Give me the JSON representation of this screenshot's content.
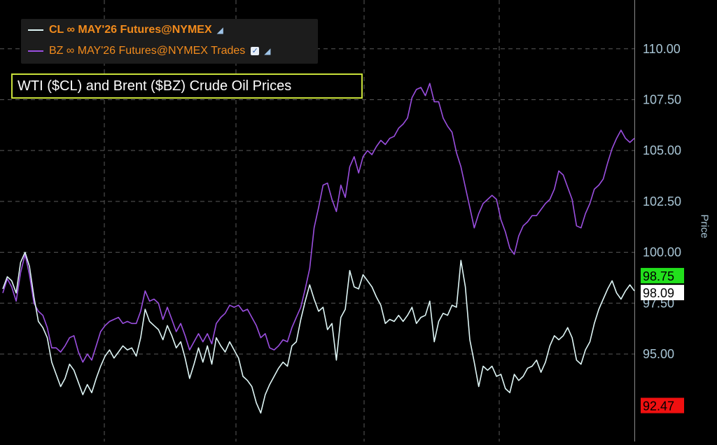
{
  "chart_data": {
    "type": "line",
    "title": "WTI ($CL) and Brent ($BZ) Crude Oil Prices",
    "ylabel": "Price",
    "ylim": [
      90.7,
      112.4
    ],
    "y_ticks": [
      "95.00",
      "97.50",
      "100.00",
      "102.50",
      "105.00",
      "107.50",
      "110.00"
    ],
    "grid": true,
    "legend_position": "top-left",
    "series": [
      {
        "name": "CL ∞ MAY'26 Futures@NYMEX",
        "color": "#dff6f6",
        "values": [
          98.2,
          98.8,
          98.6,
          98.0,
          99.5,
          100.0,
          99.3,
          97.8,
          96.6,
          96.3,
          95.8,
          94.6,
          94.0,
          93.4,
          93.8,
          94.5,
          94.2,
          93.6,
          93.0,
          93.5,
          93.1,
          93.8,
          94.4,
          94.9,
          95.2,
          94.8,
          95.1,
          95.4,
          95.2,
          95.3,
          94.9,
          95.8,
          97.2,
          96.6,
          96.4,
          96.2,
          95.7,
          96.4,
          95.9,
          95.3,
          95.6,
          94.8,
          93.8,
          94.5,
          95.3,
          94.6,
          95.4,
          94.5,
          95.8,
          95.4,
          95.1,
          95.6,
          95.2,
          94.8,
          93.9,
          93.7,
          93.4,
          92.6,
          92.1,
          93.0,
          93.5,
          93.9,
          94.3,
          94.6,
          94.4,
          95.4,
          95.6,
          96.7,
          97.6,
          98.4,
          97.7,
          97.1,
          97.3,
          96.2,
          96.5,
          94.7,
          96.8,
          97.2,
          99.1,
          98.3,
          98.2,
          98.9,
          98.6,
          98.3,
          97.8,
          97.4,
          96.5,
          96.7,
          96.6,
          96.9,
          96.6,
          96.9,
          97.3,
          96.5,
          96.8,
          96.9,
          97.6,
          95.6,
          96.6,
          97.0,
          96.9,
          97.4,
          97.3,
          99.6,
          98.3,
          95.7,
          94.6,
          93.4,
          94.4,
          94.2,
          94.4,
          93.9,
          94.0,
          93.3,
          93.1,
          94.0,
          93.7,
          93.9,
          94.3,
          94.4,
          94.7,
          94.1,
          94.6,
          95.4,
          95.9,
          95.7,
          95.9,
          96.3,
          95.8,
          94.7,
          94.5,
          95.2,
          95.6,
          96.5,
          97.2,
          97.7,
          98.2,
          98.6,
          98.0,
          97.7,
          98.1,
          98.4,
          98.1
        ]
      },
      {
        "name": "BZ ∞ MAY'26 Futures@NYMEX Trades",
        "color": "#9b4fe0",
        "values": [
          98.0,
          98.7,
          98.3,
          97.6,
          99.0,
          99.9,
          98.9,
          97.5,
          97.1,
          96.9,
          96.3,
          95.3,
          95.3,
          95.1,
          95.4,
          95.8,
          95.9,
          95.1,
          94.6,
          95.0,
          94.7,
          95.4,
          96.1,
          96.4,
          96.6,
          96.7,
          96.8,
          96.5,
          96.6,
          96.5,
          96.5,
          97.1,
          98.1,
          97.6,
          97.7,
          97.5,
          96.7,
          97.3,
          96.7,
          96.1,
          96.5,
          95.9,
          95.2,
          95.6,
          96.0,
          95.6,
          96.0,
          95.5,
          96.5,
          96.8,
          97.0,
          97.4,
          97.3,
          97.4,
          97.1,
          97.2,
          96.8,
          96.4,
          95.8,
          96.0,
          95.3,
          95.2,
          95.4,
          95.7,
          95.6,
          96.3,
          96.8,
          97.3,
          98.2,
          99.2,
          101.2,
          102.2,
          103.3,
          103.4,
          102.6,
          102.0,
          103.3,
          102.7,
          104.2,
          104.7,
          103.9,
          104.7,
          105.0,
          104.8,
          105.2,
          105.5,
          105.3,
          105.6,
          105.7,
          106.1,
          106.3,
          106.6,
          107.6,
          108.0,
          108.1,
          107.7,
          108.3,
          107.4,
          107.4,
          106.6,
          106.2,
          105.9,
          104.9,
          104.2,
          103.2,
          102.2,
          101.2,
          101.9,
          102.4,
          102.6,
          102.8,
          102.6,
          101.6,
          101.0,
          100.2,
          99.9,
          100.8,
          101.3,
          101.5,
          101.8,
          101.8,
          102.1,
          102.4,
          102.6,
          103.1,
          104.0,
          103.8,
          103.2,
          102.6,
          101.3,
          101.2,
          101.9,
          102.4,
          103.1,
          103.3,
          103.6,
          104.4,
          105.1,
          105.6,
          106.0,
          105.6,
          105.4,
          105.6
        ]
      }
    ],
    "price_labels": [
      {
        "text": "98.75",
        "value": 98.75,
        "bg": "#22e01c",
        "fg": "#000000"
      },
      {
        "text": "98.09",
        "value": 98.09,
        "bg": "#ffffff",
        "fg": "#000000"
      },
      {
        "text": "92.47",
        "value": 92.47,
        "bg": "#f01010",
        "fg": "#000000"
      }
    ]
  },
  "legend": {
    "cl_label": "CL ∞ MAY'26 Futures@NYMEX",
    "bz_label": "BZ ∞ MAY'26 Futures@NYMEX Trades"
  }
}
